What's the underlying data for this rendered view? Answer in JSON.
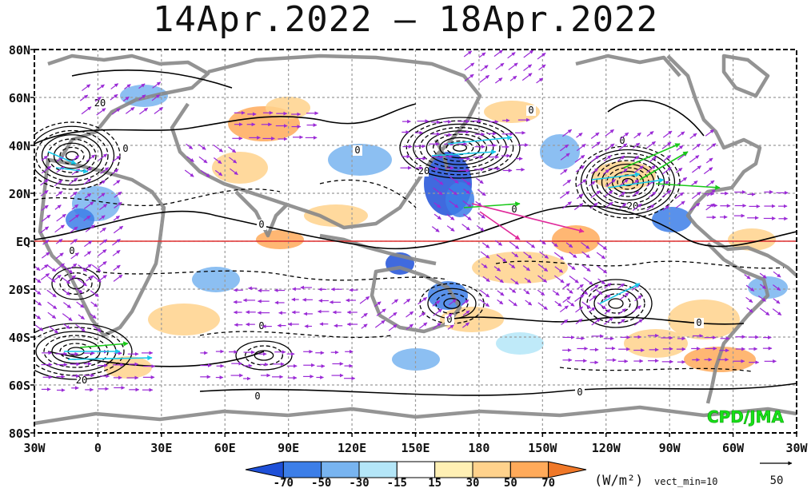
{
  "title": "14Apr.2022 – 18Apr.2022",
  "lat_labels": [
    "80N",
    "60N",
    "40N",
    "20N",
    "EQ",
    "20S",
    "40S",
    "60S",
    "80S"
  ],
  "lon_labels": [
    "30W",
    "0",
    "30E",
    "60E",
    "90E",
    "120E",
    "150E",
    "180",
    "150W",
    "120W",
    "90W",
    "60W",
    "30W"
  ],
  "contour_labels": [
    "20",
    "0",
    "0",
    "0",
    "20",
    "0",
    "0",
    "20",
    "0",
    "0",
    "0",
    "0",
    "0",
    "20",
    "0",
    "0"
  ],
  "credit": "CPD/JMA",
  "colorbar": {
    "tick_labels": [
      "-70",
      "-50",
      "-30",
      "-15",
      "15",
      "30",
      "50",
      "70"
    ],
    "colors": [
      "#1e50d8",
      "#3c7ee8",
      "#78b4f0",
      "#b4e6f8",
      "#ffffff",
      "#fff0b4",
      "#ffd28c",
      "#ffaa5a",
      "#f07828"
    ],
    "unit": "(W/m²)",
    "vect_min": "vect_min=10"
  },
  "reference_vector": {
    "value": "50"
  },
  "colors": {
    "equator_line": "#e03030",
    "land_outline": "#888888",
    "contours": "#000000",
    "vector_primary": "#9a2ad6",
    "vector_strong": "#18c8e8",
    "vector_max": "#18c818",
    "credit_text": "#18e018"
  }
}
